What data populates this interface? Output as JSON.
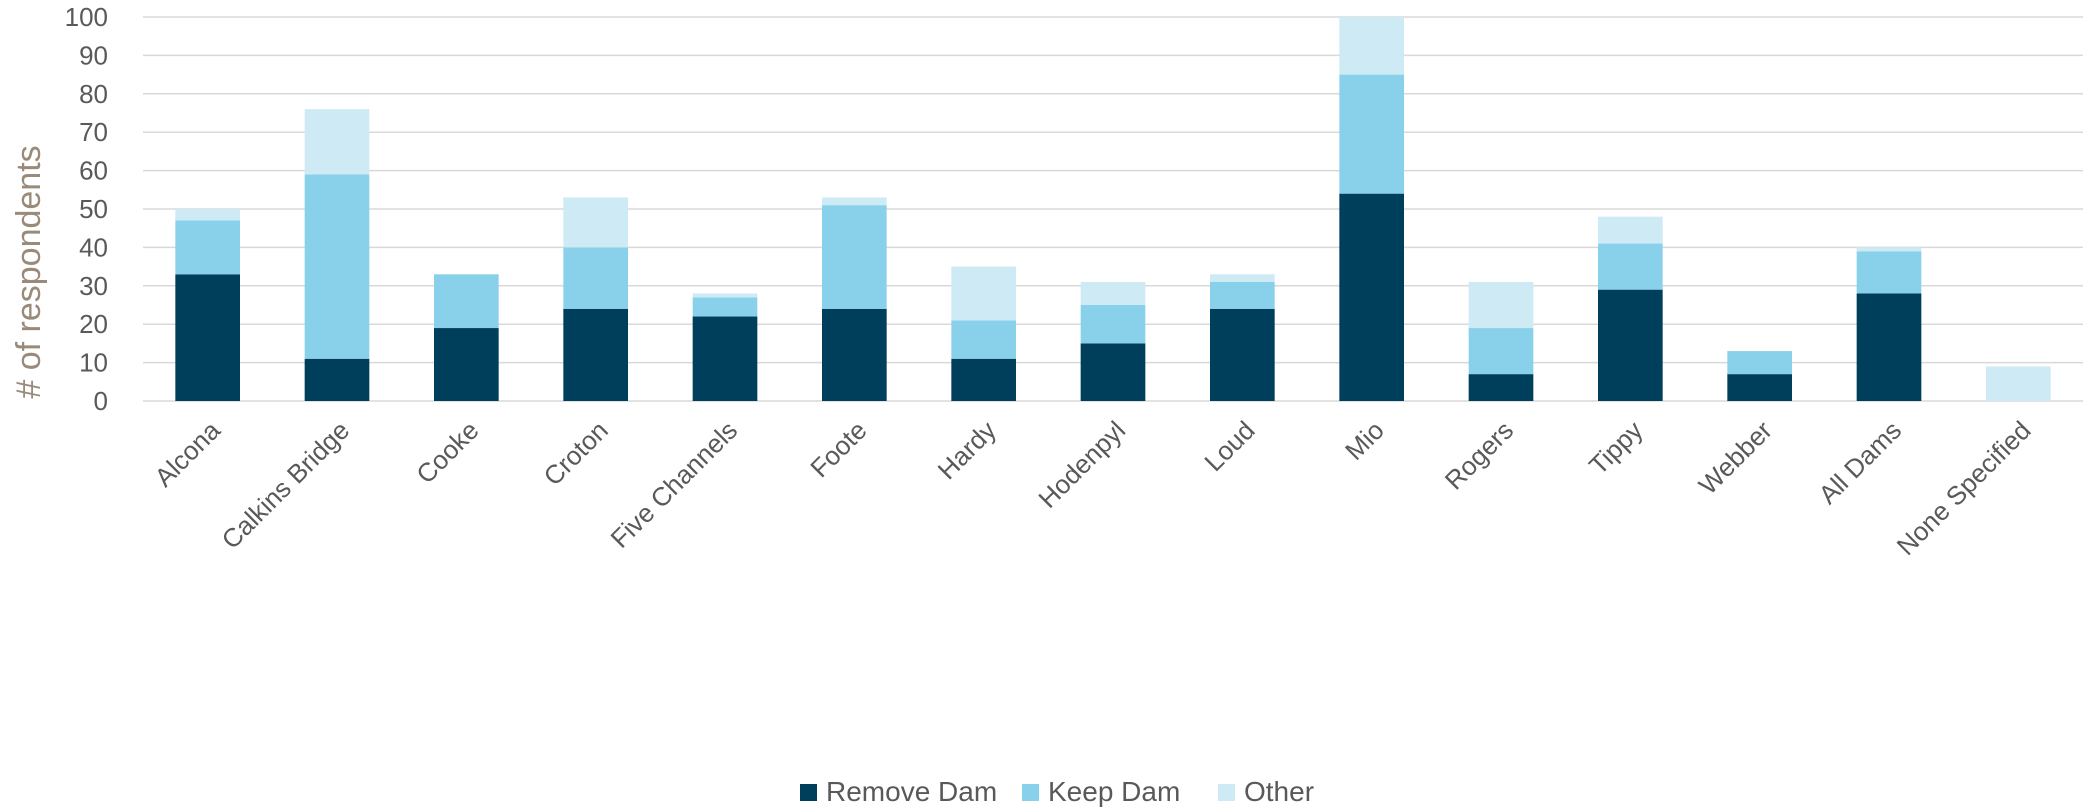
{
  "chart_data": {
    "type": "bar",
    "stacked": true,
    "ylabel": "# of respondents",
    "ylim": [
      0,
      100
    ],
    "yticks": [
      0,
      10,
      20,
      30,
      40,
      50,
      60,
      70,
      80,
      90,
      100
    ],
    "grid": true,
    "legend_position": "bottom",
    "categories": [
      "Alcona",
      "Calkins Bridge",
      "Cooke",
      "Croton",
      "Five Channels",
      "Foote",
      "Hardy",
      "Hodenpyl",
      "Loud",
      "Mio",
      "Rogers",
      "Tippy",
      "Webber",
      "All Dams",
      "None Specified"
    ],
    "series": [
      {
        "name": "Remove Dam",
        "color": "#003f5c",
        "values": [
          33,
          11,
          19,
          24,
          22,
          24,
          11,
          15,
          24,
          54,
          7,
          29,
          7,
          28,
          0
        ]
      },
      {
        "name": "Keep Dam",
        "color": "#89d1ea",
        "values": [
          14,
          48,
          14,
          16,
          5,
          27,
          10,
          10,
          7,
          31,
          12,
          12,
          6,
          11,
          0
        ]
      },
      {
        "name": "Other",
        "color": "#cdeaf5",
        "values": [
          3,
          17,
          0,
          13,
          1,
          2,
          14,
          6,
          2,
          15,
          12,
          7,
          0,
          1,
          9
        ]
      }
    ]
  }
}
